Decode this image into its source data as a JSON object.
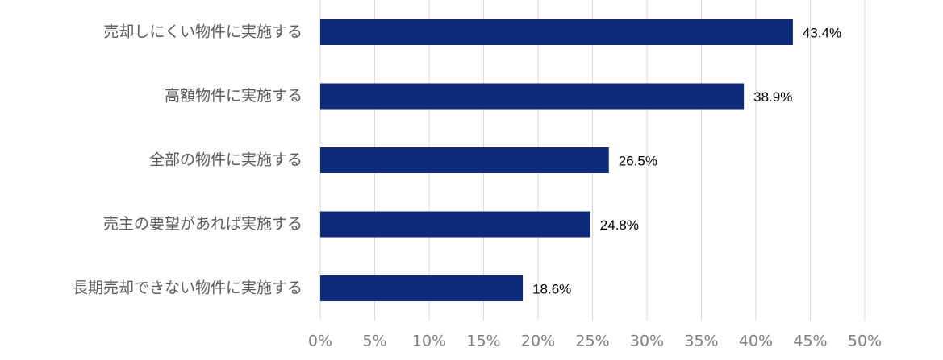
{
  "chart_data": {
    "type": "bar",
    "orientation": "horizontal",
    "categories": [
      "売却しにくい物件に実施する",
      "高額物件に実施する",
      "全部の物件に実施する",
      "売主の要望があれば実施する",
      "長期売却できない物件に実施する"
    ],
    "values": [
      43.4,
      38.9,
      26.5,
      24.8,
      18.6
    ],
    "value_labels": [
      "43.4%",
      "38.9%",
      "26.5%",
      "24.8%",
      "18.6%"
    ],
    "color": "#0e2a7a",
    "xlim": [
      0,
      50
    ],
    "xticks": [
      {
        "value": 0,
        "label": "0%"
      },
      {
        "value": 5,
        "label": "5%"
      },
      {
        "value": 10,
        "label": "10%"
      },
      {
        "value": 15,
        "label": "15%"
      },
      {
        "value": 20,
        "label": "20%"
      },
      {
        "value": 25,
        "label": "25%"
      },
      {
        "value": 30,
        "label": "30%"
      },
      {
        "value": 35,
        "label": "35%"
      },
      {
        "value": 40,
        "label": "40%"
      },
      {
        "value": 45,
        "label": "45%"
      },
      {
        "value": 50,
        "label": "50%"
      }
    ],
    "grid": true
  }
}
